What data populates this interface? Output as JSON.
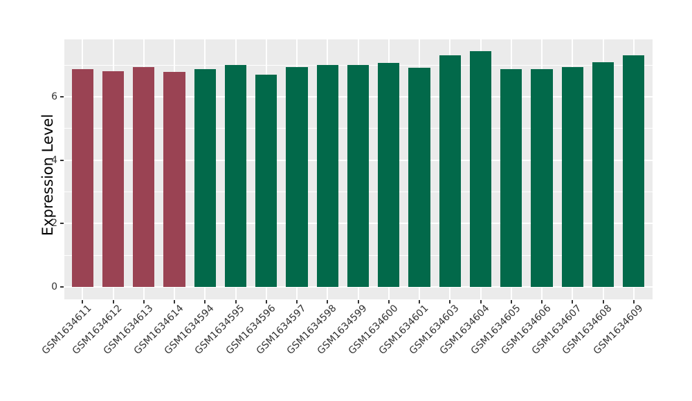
{
  "chart_data": {
    "type": "bar",
    "title": "",
    "xlabel": "",
    "ylabel": "Expression Level",
    "categories": [
      "GSM1634611",
      "GSM1634612",
      "GSM1634613",
      "GSM1634614",
      "GSM1634594",
      "GSM1634595",
      "GSM1634596",
      "GSM1634597",
      "GSM1634598",
      "GSM1634599",
      "GSM1634600",
      "GSM1634601",
      "GSM1634603",
      "GSM1634604",
      "GSM1634605",
      "GSM1634606",
      "GSM1634607",
      "GSM1634608",
      "GSM1634609"
    ],
    "values": [
      6.87,
      6.8,
      6.94,
      6.78,
      6.87,
      7.0,
      6.7,
      6.94,
      7.0,
      7.01,
      7.07,
      6.92,
      7.31,
      7.44,
      6.86,
      6.88,
      6.94,
      7.08,
      7.31
    ],
    "bar_colors": [
      "#9A4353",
      "#9A4353",
      "#9A4353",
      "#9A4353",
      "#02694A",
      "#02694A",
      "#02694A",
      "#02694A",
      "#02694A",
      "#02694A",
      "#02694A",
      "#02694A",
      "#02694A",
      "#02694A",
      "#02694A",
      "#02694A",
      "#02694A",
      "#02694A",
      "#02694A"
    ],
    "group_colors": {
      "maroon": "#9A4353",
      "green": "#02694A"
    },
    "yticks": [
      0,
      2,
      4,
      6
    ],
    "minor_yticks": [
      1,
      3,
      5,
      7
    ],
    "ylim": [
      0,
      7.81
    ],
    "grid": true,
    "legend": "none",
    "panel_background": "#EBEBEB",
    "gridline_color": "#FFFFFF",
    "axis_text_color": "#333333",
    "tick_mark_color": "#333333"
  }
}
